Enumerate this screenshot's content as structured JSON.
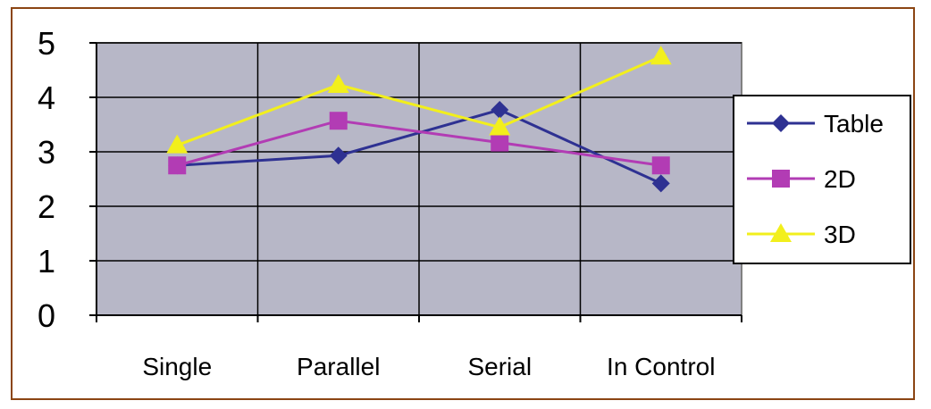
{
  "chart_data": {
    "type": "line",
    "categories": [
      "Single",
      "Parallel",
      "Serial",
      "In Control"
    ],
    "ylim": [
      0,
      5
    ],
    "yticks": [
      "0",
      "1",
      "2",
      "3",
      "4",
      "5"
    ],
    "grid": true,
    "legend_position": "right",
    "plot_background": "#b7b7c7",
    "series": [
      {
        "name": "Table",
        "color": "#2e3192",
        "marker": "diamond",
        "values": [
          2.75,
          2.93,
          3.77,
          2.42
        ]
      },
      {
        "name": "2D",
        "color": "#b23cb4",
        "marker": "square",
        "values": [
          2.75,
          3.57,
          3.17,
          2.75
        ]
      },
      {
        "name": "3D",
        "color": "#f2ef1c",
        "marker": "triangle",
        "values": [
          3.12,
          4.23,
          3.45,
          4.75
        ]
      }
    ]
  }
}
